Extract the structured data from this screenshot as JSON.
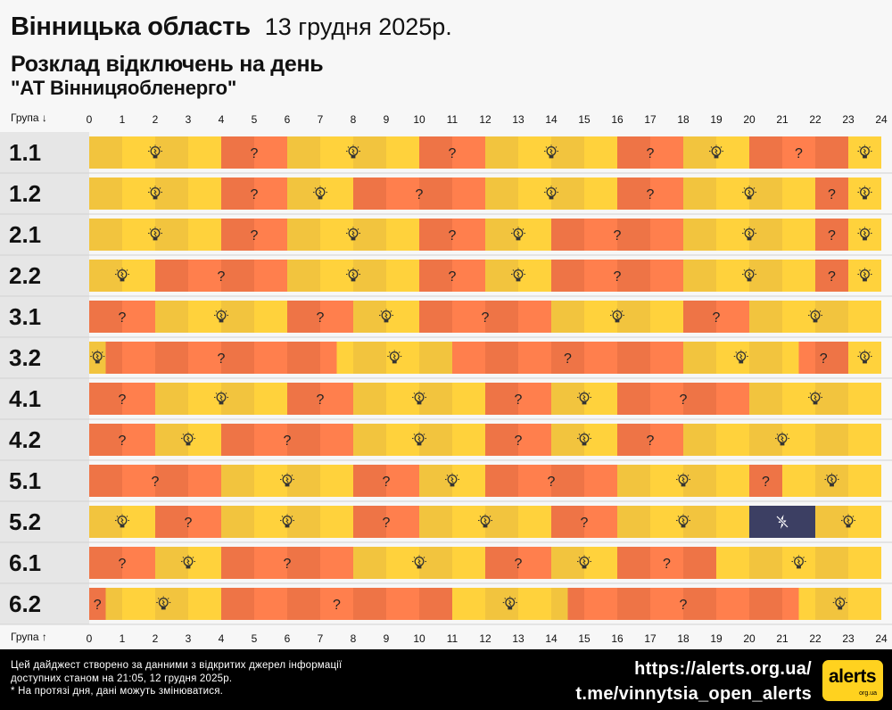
{
  "header": {
    "region": "Вінницька область",
    "date": "13 грудня 2025р.",
    "subtitle": "Розклад відключень на день",
    "provider": "\"АТ Вінницяобленерго\""
  },
  "axis": {
    "top_label": "Група ↓",
    "bottom_label": "Група ↑"
  },
  "colors": {
    "on": "#ffd23c",
    "on_alt": "#f2c43e",
    "maybe": "#ff7f4d",
    "maybe_alt": "#ee7446",
    "off": "#3c3f63",
    "group_bg": "#e6e6e6"
  },
  "legend_symbols": {
    "maybe": "?"
  },
  "chart_data": {
    "type": "timeline",
    "x_range": [
      0,
      24
    ],
    "x_ticks": [
      0,
      1,
      2,
      3,
      4,
      5,
      6,
      7,
      8,
      9,
      10,
      11,
      12,
      13,
      14,
      15,
      16,
      17,
      18,
      19,
      20,
      21,
      22,
      23,
      24
    ],
    "states": [
      "on",
      "maybe",
      "off"
    ],
    "groups": [
      {
        "name": "1.1",
        "segments": [
          [
            0,
            4,
            "on"
          ],
          [
            4,
            6,
            "maybe"
          ],
          [
            6,
            10,
            "on"
          ],
          [
            10,
            12,
            "maybe"
          ],
          [
            12,
            16,
            "on"
          ],
          [
            16,
            18,
            "maybe"
          ],
          [
            18,
            20,
            "on"
          ],
          [
            20,
            23,
            "maybe"
          ],
          [
            23,
            24,
            "on"
          ]
        ]
      },
      {
        "name": "1.2",
        "segments": [
          [
            0,
            4,
            "on"
          ],
          [
            4,
            6,
            "maybe"
          ],
          [
            6,
            8,
            "on"
          ],
          [
            8,
            12,
            "maybe"
          ],
          [
            12,
            16,
            "on"
          ],
          [
            16,
            18,
            "maybe"
          ],
          [
            18,
            22,
            "on"
          ],
          [
            22,
            23,
            "maybe"
          ],
          [
            23,
            24,
            "on"
          ]
        ]
      },
      {
        "name": "2.1",
        "segments": [
          [
            0,
            4,
            "on"
          ],
          [
            4,
            6,
            "maybe"
          ],
          [
            6,
            10,
            "on"
          ],
          [
            10,
            12,
            "maybe"
          ],
          [
            12,
            14,
            "on"
          ],
          [
            14,
            18,
            "maybe"
          ],
          [
            18,
            22,
            "on"
          ],
          [
            22,
            23,
            "maybe"
          ],
          [
            23,
            24,
            "on"
          ]
        ]
      },
      {
        "name": "2.2",
        "segments": [
          [
            0,
            2,
            "on"
          ],
          [
            2,
            6,
            "maybe"
          ],
          [
            6,
            10,
            "on"
          ],
          [
            10,
            12,
            "maybe"
          ],
          [
            12,
            14,
            "on"
          ],
          [
            14,
            18,
            "maybe"
          ],
          [
            18,
            22,
            "on"
          ],
          [
            22,
            23,
            "maybe"
          ],
          [
            23,
            24,
            "on"
          ]
        ]
      },
      {
        "name": "3.1",
        "segments": [
          [
            0,
            2,
            "maybe"
          ],
          [
            2,
            6,
            "on"
          ],
          [
            6,
            8,
            "maybe"
          ],
          [
            8,
            10,
            "on"
          ],
          [
            10,
            14,
            "maybe"
          ],
          [
            14,
            18,
            "on"
          ],
          [
            18,
            20,
            "maybe"
          ],
          [
            20,
            24,
            "on"
          ]
        ]
      },
      {
        "name": "3.2",
        "segments": [
          [
            0,
            0.5,
            "on"
          ],
          [
            0.5,
            7.5,
            "maybe"
          ],
          [
            7.5,
            11,
            "on"
          ],
          [
            11,
            18,
            "maybe"
          ],
          [
            18,
            21.5,
            "on"
          ],
          [
            21.5,
            23,
            "maybe"
          ],
          [
            23,
            24,
            "on"
          ]
        ]
      },
      {
        "name": "4.1",
        "segments": [
          [
            0,
            2,
            "maybe"
          ],
          [
            2,
            6,
            "on"
          ],
          [
            6,
            8,
            "maybe"
          ],
          [
            8,
            12,
            "on"
          ],
          [
            12,
            14,
            "maybe"
          ],
          [
            14,
            16,
            "on"
          ],
          [
            16,
            20,
            "maybe"
          ],
          [
            20,
            24,
            "on"
          ]
        ]
      },
      {
        "name": "4.2",
        "segments": [
          [
            0,
            2,
            "maybe"
          ],
          [
            2,
            4,
            "on"
          ],
          [
            4,
            8,
            "maybe"
          ],
          [
            8,
            12,
            "on"
          ],
          [
            12,
            14,
            "maybe"
          ],
          [
            14,
            16,
            "on"
          ],
          [
            16,
            18,
            "maybe"
          ],
          [
            18,
            24,
            "on"
          ]
        ]
      },
      {
        "name": "5.1",
        "segments": [
          [
            0,
            4,
            "maybe"
          ],
          [
            4,
            8,
            "on"
          ],
          [
            8,
            10,
            "maybe"
          ],
          [
            10,
            12,
            "on"
          ],
          [
            12,
            16,
            "maybe"
          ],
          [
            16,
            20,
            "on"
          ],
          [
            20,
            21,
            "maybe"
          ],
          [
            21,
            24,
            "on"
          ]
        ]
      },
      {
        "name": "5.2",
        "segments": [
          [
            0,
            2,
            "on"
          ],
          [
            2,
            4,
            "maybe"
          ],
          [
            4,
            8,
            "on"
          ],
          [
            8,
            10,
            "maybe"
          ],
          [
            10,
            14,
            "on"
          ],
          [
            14,
            16,
            "maybe"
          ],
          [
            16,
            20,
            "on"
          ],
          [
            20,
            22,
            "off"
          ],
          [
            22,
            24,
            "on"
          ]
        ]
      },
      {
        "name": "6.1",
        "segments": [
          [
            0,
            2,
            "maybe"
          ],
          [
            2,
            4,
            "on"
          ],
          [
            4,
            8,
            "maybe"
          ],
          [
            8,
            12,
            "on"
          ],
          [
            12,
            14,
            "maybe"
          ],
          [
            14,
            16,
            "on"
          ],
          [
            16,
            19,
            "maybe"
          ],
          [
            19,
            24,
            "on"
          ]
        ]
      },
      {
        "name": "6.2",
        "segments": [
          [
            0,
            0.5,
            "maybe"
          ],
          [
            0.5,
            4,
            "on"
          ],
          [
            4,
            11,
            "maybe"
          ],
          [
            11,
            14.5,
            "on"
          ],
          [
            14.5,
            21.5,
            "maybe"
          ],
          [
            21.5,
            24,
            "on"
          ]
        ]
      }
    ]
  },
  "footer": {
    "note_line1": "Цей дайджест створено за данними з відкритих джерел інформації",
    "note_line2": "доступних станом на 21:05, 12 грудня 2025р.",
    "note_line3": "* На протязі дня, дані можуть змінюватися.",
    "link_site": "https://alerts.org.ua/",
    "link_telegram": "t.me/vinnytsia_open_alerts",
    "logo_text": "alerts",
    "logo_sub": "org.ua"
  }
}
